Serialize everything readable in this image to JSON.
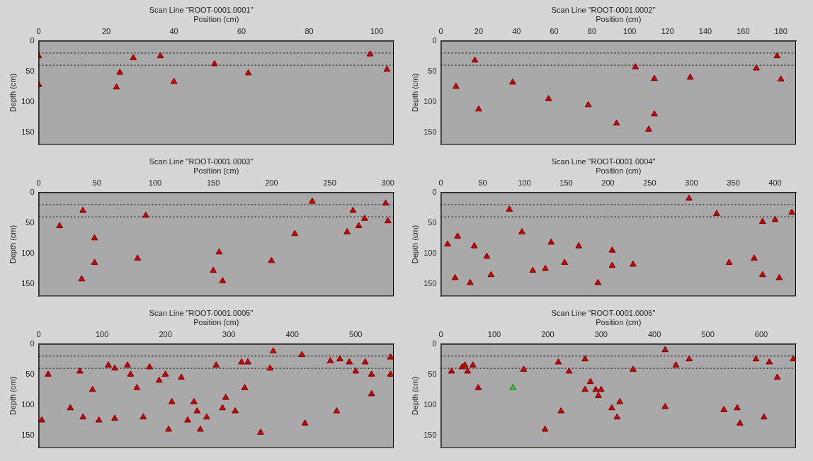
{
  "chart_data": [
    {
      "type": "scatter",
      "title": "Scan Line \"ROOT-0001.0001\"",
      "x_label": "Position (cm)",
      "y_label": "Depth (cm)",
      "xlim": [
        0,
        105
      ],
      "xticks": [
        0,
        20,
        40,
        60,
        80,
        100
      ],
      "ylim": [
        0,
        170
      ],
      "yticks": [
        0,
        50,
        100,
        150
      ],
      "grid": false,
      "series": [
        {
          "type": "scatter",
          "color": "#d40000",
          "marker": "triangle",
          "x": [
            0,
            28,
            36,
            52,
            62,
            24,
            40,
            23,
            0,
            98,
            103
          ],
          "values": [
            25,
            28,
            25,
            38,
            53,
            52,
            67,
            76,
            72,
            22,
            47
          ]
        },
        {
          "type": "line",
          "color": "#202020",
          "line_style": "dotted",
          "x": [
            0,
            105
          ],
          "values": [
            20,
            20
          ]
        },
        {
          "type": "line",
          "color": "#202020",
          "line_style": "dotted",
          "x": [
            0,
            105
          ],
          "values": [
            40,
            40
          ]
        }
      ]
    },
    {
      "type": "scatter",
      "title": "Scan Line \"ROOT-0001.0002\"",
      "x_label": "Position (cm)",
      "y_label": "Depth (cm)",
      "xlim": [
        0,
        188
      ],
      "xticks": [
        0,
        20,
        40,
        60,
        80,
        100,
        120,
        140,
        160,
        180
      ],
      "ylim": [
        0,
        170
      ],
      "yticks": [
        0,
        50,
        100,
        150
      ],
      "grid": false,
      "series": [
        {
          "type": "scatter",
          "color": "#d40000",
          "marker": "triangle",
          "x": [
            18,
            38,
            8,
            20,
            57,
            78,
            93,
            103,
            113,
            113,
            110,
            132,
            167,
            178,
            180
          ],
          "values": [
            32,
            68,
            75,
            112,
            95,
            105,
            135,
            43,
            62,
            120,
            145,
            60,
            45,
            25,
            63
          ]
        },
        {
          "type": "line",
          "color": "#202020",
          "line_style": "dotted",
          "x": [
            0,
            188
          ],
          "values": [
            20,
            20
          ]
        },
        {
          "type": "line",
          "color": "#202020",
          "line_style": "dotted",
          "x": [
            0,
            188
          ],
          "values": [
            40,
            40
          ]
        }
      ]
    },
    {
      "type": "scatter",
      "title": "Scan Line \"ROOT-0001.0003\"",
      "x_label": "Position (cm)",
      "y_label": "Depth (cm)",
      "xlim": [
        0,
        305
      ],
      "xticks": [
        0,
        50,
        100,
        150,
        200,
        250,
        300
      ],
      "ylim": [
        0,
        170
      ],
      "yticks": [
        0,
        50,
        100,
        150
      ],
      "grid": false,
      "series": [
        {
          "type": "scatter",
          "color": "#d40000",
          "marker": "triangle",
          "x": [
            38,
            18,
            92,
            48,
            48,
            85,
            37,
            155,
            150,
            158,
            200,
            220,
            235,
            270,
            275,
            265,
            280,
            298,
            300
          ],
          "values": [
            30,
            55,
            38,
            75,
            115,
            108,
            142,
            98,
            128,
            145,
            112,
            68,
            15,
            30,
            55,
            65,
            43,
            18,
            47
          ]
        },
        {
          "type": "line",
          "color": "#202020",
          "line_style": "dotted",
          "x": [
            0,
            305
          ],
          "values": [
            20,
            20
          ]
        },
        {
          "type": "line",
          "color": "#202020",
          "line_style": "dotted",
          "x": [
            0,
            305
          ],
          "values": [
            40,
            40
          ]
        }
      ]
    },
    {
      "type": "scatter",
      "title": "Scan Line \"ROOT-0001.0004\"",
      "x_label": "Position (cm)",
      "y_label": "Depth (cm)",
      "xlim": [
        0,
        425
      ],
      "xticks": [
        0,
        50,
        100,
        150,
        200,
        250,
        300,
        350,
        400
      ],
      "ylim": [
        0,
        170
      ],
      "yticks": [
        0,
        50,
        100,
        150
      ],
      "grid": false,
      "series": [
        {
          "type": "scatter",
          "color": "#d40000",
          "marker": "triangle",
          "x": [
            297,
            330,
            82,
            97,
            8,
            20,
            40,
            55,
            60,
            17,
            35,
            132,
            125,
            110,
            148,
            165,
            205,
            205,
            230,
            188,
            345,
            375,
            385,
            420,
            400,
            385,
            405
          ],
          "values": [
            10,
            35,
            28,
            65,
            85,
            72,
            88,
            105,
            135,
            140,
            148,
            82,
            125,
            128,
            115,
            88,
            95,
            120,
            118,
            148,
            115,
            108,
            48,
            33,
            45,
            135,
            140
          ]
        },
        {
          "type": "line",
          "color": "#202020",
          "line_style": "dotted",
          "x": [
            0,
            425
          ],
          "values": [
            20,
            20
          ]
        },
        {
          "type": "line",
          "color": "#202020",
          "line_style": "dotted",
          "x": [
            0,
            425
          ],
          "values": [
            40,
            40
          ]
        }
      ]
    },
    {
      "type": "scatter",
      "title": "Scan Line \"ROOT-0001.0005\"",
      "x_label": "Position (cm)",
      "y_label": "Depth (cm)",
      "xlim": [
        0,
        560
      ],
      "xticks": [
        0,
        100,
        200,
        300,
        400,
        500
      ],
      "ylim": [
        0,
        170
      ],
      "yticks": [
        0,
        50,
        100,
        150
      ],
      "grid": false,
      "series": [
        {
          "type": "scatter",
          "color": "#d40000",
          "marker": "triangle",
          "x": [
            15,
            65,
            110,
            120,
            140,
            145,
            155,
            175,
            190,
            200,
            225,
            210,
            165,
            120,
            95,
            85,
            50,
            5,
            70,
            245,
            250,
            235,
            265,
            255,
            205,
            280,
            290,
            295,
            320,
            330,
            310,
            325,
            350,
            365,
            370,
            415,
            420,
            460,
            470,
            475,
            490,
            500,
            515,
            525,
            525,
            555,
            555
          ],
          "values": [
            50,
            45,
            35,
            40,
            35,
            50,
            72,
            38,
            60,
            50,
            55,
            95,
            120,
            122,
            125,
            75,
            105,
            125,
            120,
            95,
            110,
            125,
            120,
            140,
            140,
            35,
            105,
            88,
            30,
            30,
            110,
            72,
            145,
            40,
            12,
            18,
            130,
            28,
            110,
            25,
            30,
            45,
            30,
            50,
            82,
            22,
            50
          ]
        },
        {
          "type": "line",
          "color": "#202020",
          "line_style": "dotted",
          "x": [
            0,
            560
          ],
          "values": [
            20,
            20
          ]
        },
        {
          "type": "line",
          "color": "#202020",
          "line_style": "dotted",
          "x": [
            0,
            560
          ],
          "values": [
            40,
            40
          ]
        }
      ]
    },
    {
      "type": "scatter",
      "title": "Scan Line \"ROOT-0001.0006\"",
      "x_label": "Position (cm)",
      "y_label": "Depth (cm)",
      "xlim": [
        0,
        665
      ],
      "xticks": [
        0,
        100,
        200,
        300,
        400,
        500,
        600
      ],
      "ylim": [
        0,
        170
      ],
      "yticks": [
        0,
        50,
        100,
        150
      ],
      "grid": false,
      "series": [
        {
          "type": "scatter",
          "color": "#d40000",
          "marker": "triangle",
          "x": [
            20,
            40,
            45,
            50,
            60,
            70,
            155,
            195,
            220,
            225,
            240,
            270,
            280,
            290,
            295,
            270,
            300,
            320,
            330,
            335,
            360,
            420,
            420,
            440,
            465,
            530,
            555,
            560,
            590,
            605,
            615,
            630,
            660
          ],
          "values": [
            45,
            38,
            35,
            45,
            35,
            72,
            42,
            140,
            30,
            110,
            45,
            25,
            62,
            75,
            85,
            75,
            75,
            105,
            120,
            95,
            42,
            10,
            103,
            35,
            25,
            108,
            105,
            130,
            25,
            120,
            30,
            55,
            25
          ]
        },
        {
          "type": "scatter",
          "color": "#33cc33",
          "marker": "triangle",
          "x": [
            135
          ],
          "values": [
            72
          ]
        },
        {
          "type": "line",
          "color": "#202020",
          "line_style": "dotted",
          "x": [
            0,
            665
          ],
          "values": [
            20,
            20
          ]
        },
        {
          "type": "line",
          "color": "#202020",
          "line_style": "dotted",
          "x": [
            0,
            665
          ],
          "values": [
            40,
            40
          ]
        }
      ]
    }
  ]
}
